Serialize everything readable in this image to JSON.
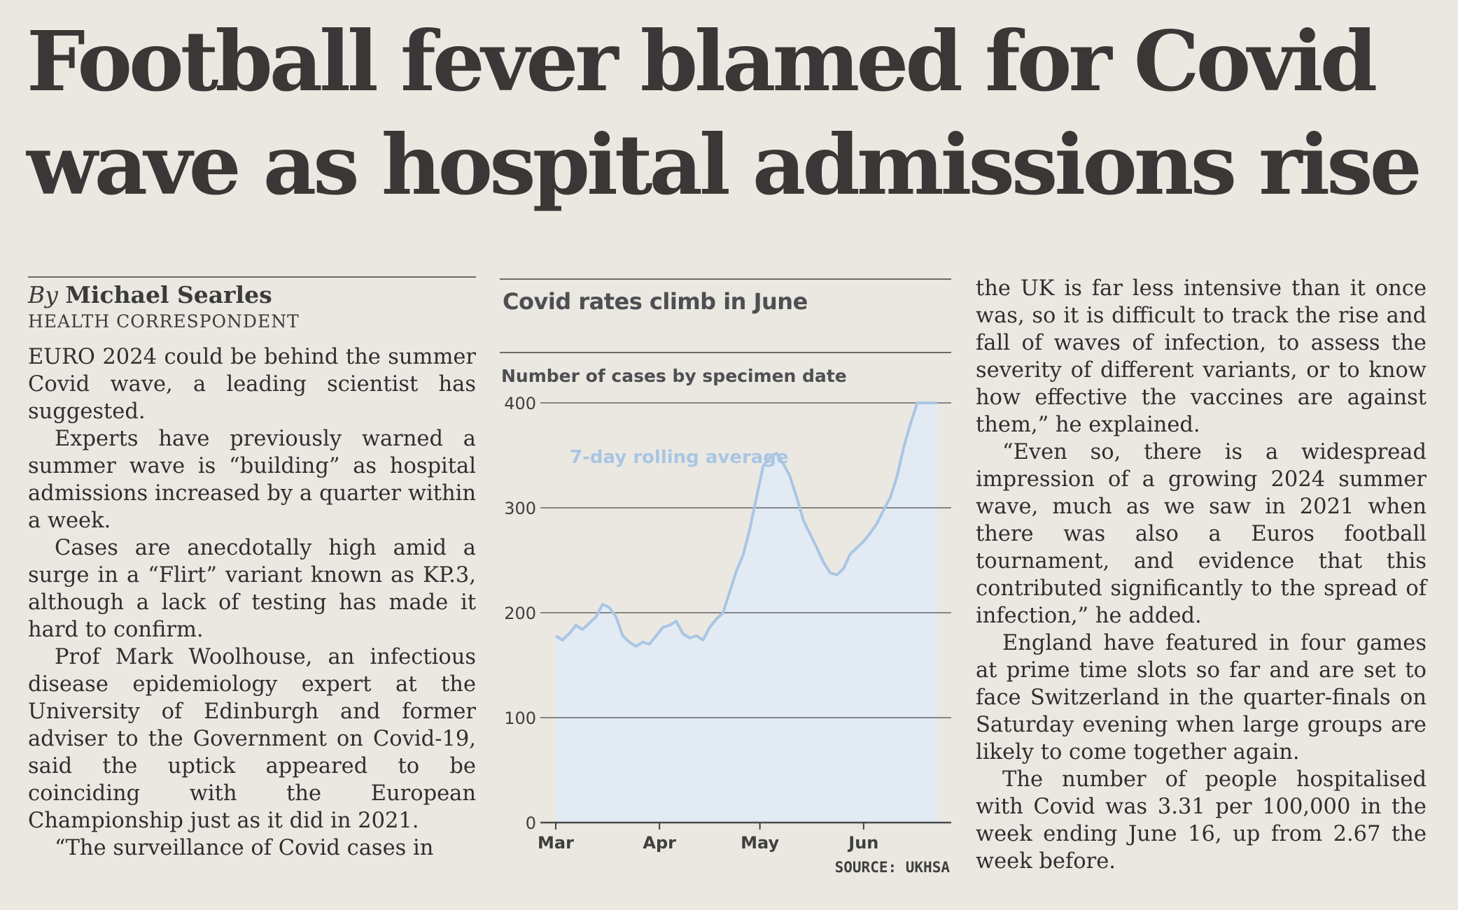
{
  "headline": "Football fever blamed for Covid wave as hospital admissions rise",
  "byline": {
    "by": "By",
    "name": "Michael Searles",
    "role": "HEALTH CORRESPONDENT"
  },
  "left_paragraphs": [
    "EURO 2024 could be behind the summer Covid wave, a leading scientist has suggested.",
    "Experts have previously warned a summer wave is “building” as hospital admissions increased by a quarter within a week.",
    "Cases are anecdotally high amid a surge in a “Flirt” variant known as KP.3, although a lack of testing has made it hard to confirm.",
    "Prof Mark Woolhouse, an infectious disease epidemiology expert at the University of Edinburgh and former adviser to the Government on Covid-19, said the uptick appeared to be coinciding with the European Championship just as it did in 2021.",
    "“The surveillance of Covid cases in"
  ],
  "right_paragraphs": [
    "the UK is far less intensive than it once was, so it is difficult to track the rise and fall of waves of infection, to assess the severity of different variants, or to know how effective the vaccines are against them,” he explained.",
    "“Even so, there is a widespread impression of a growing 2024 summer wave, much as we saw in 2021 when there was also a Euros football tournament, and evidence that this contributed significantly to the spread of infection,” he added.",
    "England have featured in four games at prime time slots so far and are set to face Switzerland in the quarter-finals on Saturday evening when large groups are likely to come together again.",
    "The number of people hospitalised with Covid was 3.31 per 100,000 in the week ending June 16, up from 2.67 the week before."
  ],
  "chart_data": {
    "type": "area",
    "title": "Covid rates climb in June",
    "ylabel": "Number of cases by specimen date",
    "series_label": "7-day rolling average",
    "source": "SOURCE: UKHSA",
    "x_ticks": [
      "Mar",
      "Apr",
      "May",
      "Jun"
    ],
    "y_ticks": [
      0,
      100,
      200,
      300,
      400
    ],
    "ylim": [
      0,
      400
    ],
    "grid": true,
    "colors": {
      "line": "#a9c6e3",
      "fill": "#e2ebf3",
      "label": "#a9c6e3",
      "grid": "#4a4a4a"
    },
    "series": [
      {
        "x": [
          "2024-03-01",
          "2024-03-03",
          "2024-03-05",
          "2024-03-07",
          "2024-03-09",
          "2024-03-11",
          "2024-03-13",
          "2024-03-15",
          "2024-03-17",
          "2024-03-19",
          "2024-03-21",
          "2024-03-23",
          "2024-03-25",
          "2024-03-27",
          "2024-03-29",
          "2024-03-31",
          "2024-04-02",
          "2024-04-04",
          "2024-04-06",
          "2024-04-08",
          "2024-04-10",
          "2024-04-12",
          "2024-04-14",
          "2024-04-16",
          "2024-04-18",
          "2024-04-20",
          "2024-04-22",
          "2024-04-24",
          "2024-04-26",
          "2024-04-28",
          "2024-04-30",
          "2024-05-02",
          "2024-05-04",
          "2024-05-06",
          "2024-05-08",
          "2024-05-10",
          "2024-05-12",
          "2024-05-14",
          "2024-05-16",
          "2024-05-18",
          "2024-05-20",
          "2024-05-22",
          "2024-05-24",
          "2024-05-26",
          "2024-05-28",
          "2024-05-30",
          "2024-06-01",
          "2024-06-03",
          "2024-06-05",
          "2024-06-07",
          "2024-06-09",
          "2024-06-11",
          "2024-06-13",
          "2024-06-15",
          "2024-06-17",
          "2024-06-19",
          "2024-06-21",
          "2024-06-23"
        ],
        "y": [
          178,
          174,
          180,
          188,
          184,
          190,
          196,
          208,
          205,
          196,
          178,
          172,
          168,
          172,
          170,
          178,
          186,
          188,
          192,
          180,
          176,
          178,
          174,
          186,
          194,
          200,
          220,
          240,
          255,
          280,
          310,
          340,
          348,
          352,
          342,
          330,
          310,
          288,
          275,
          262,
          248,
          238,
          236,
          242,
          256,
          262,
          268,
          276,
          285,
          298,
          310,
          330,
          358,
          380,
          400,
          400,
          400,
          400
        ]
      }
    ]
  }
}
